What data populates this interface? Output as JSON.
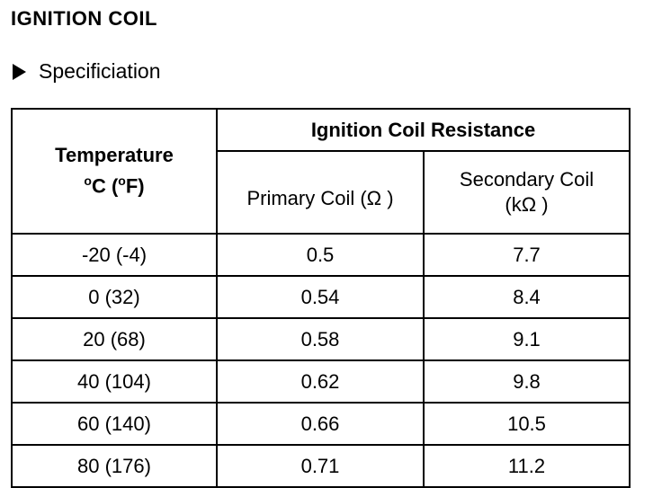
{
  "header": {
    "title": "IGNITION COIL",
    "spec_label": "Specificiation"
  },
  "table": {
    "temperature_header_line1": "Temperature",
    "temperature_header_deg1": "o",
    "temperature_header_unit1": "C (",
    "temperature_header_deg2": "o",
    "temperature_header_unit2": "F)",
    "group_header": "Ignition Coil Resistance",
    "primary_header": "Primary Coil (Ω )",
    "secondary_header_line1": "Secondary Coil",
    "secondary_header_line2": "(kΩ )",
    "rows": [
      {
        "temp": "-20 (-4)",
        "primary": "0.5",
        "secondary": "7.7"
      },
      {
        "temp": "0 (32)",
        "primary": "0.54",
        "secondary": "8.4"
      },
      {
        "temp": "20 (68)",
        "primary": "0.58",
        "secondary": "9.1"
      },
      {
        "temp": "40 (104)",
        "primary": "0.62",
        "secondary": "9.8"
      },
      {
        "temp": "60 (140)",
        "primary": "0.66",
        "secondary": "10.5"
      },
      {
        "temp": "80 (176)",
        "primary": "0.71",
        "secondary": "11.2"
      }
    ]
  }
}
